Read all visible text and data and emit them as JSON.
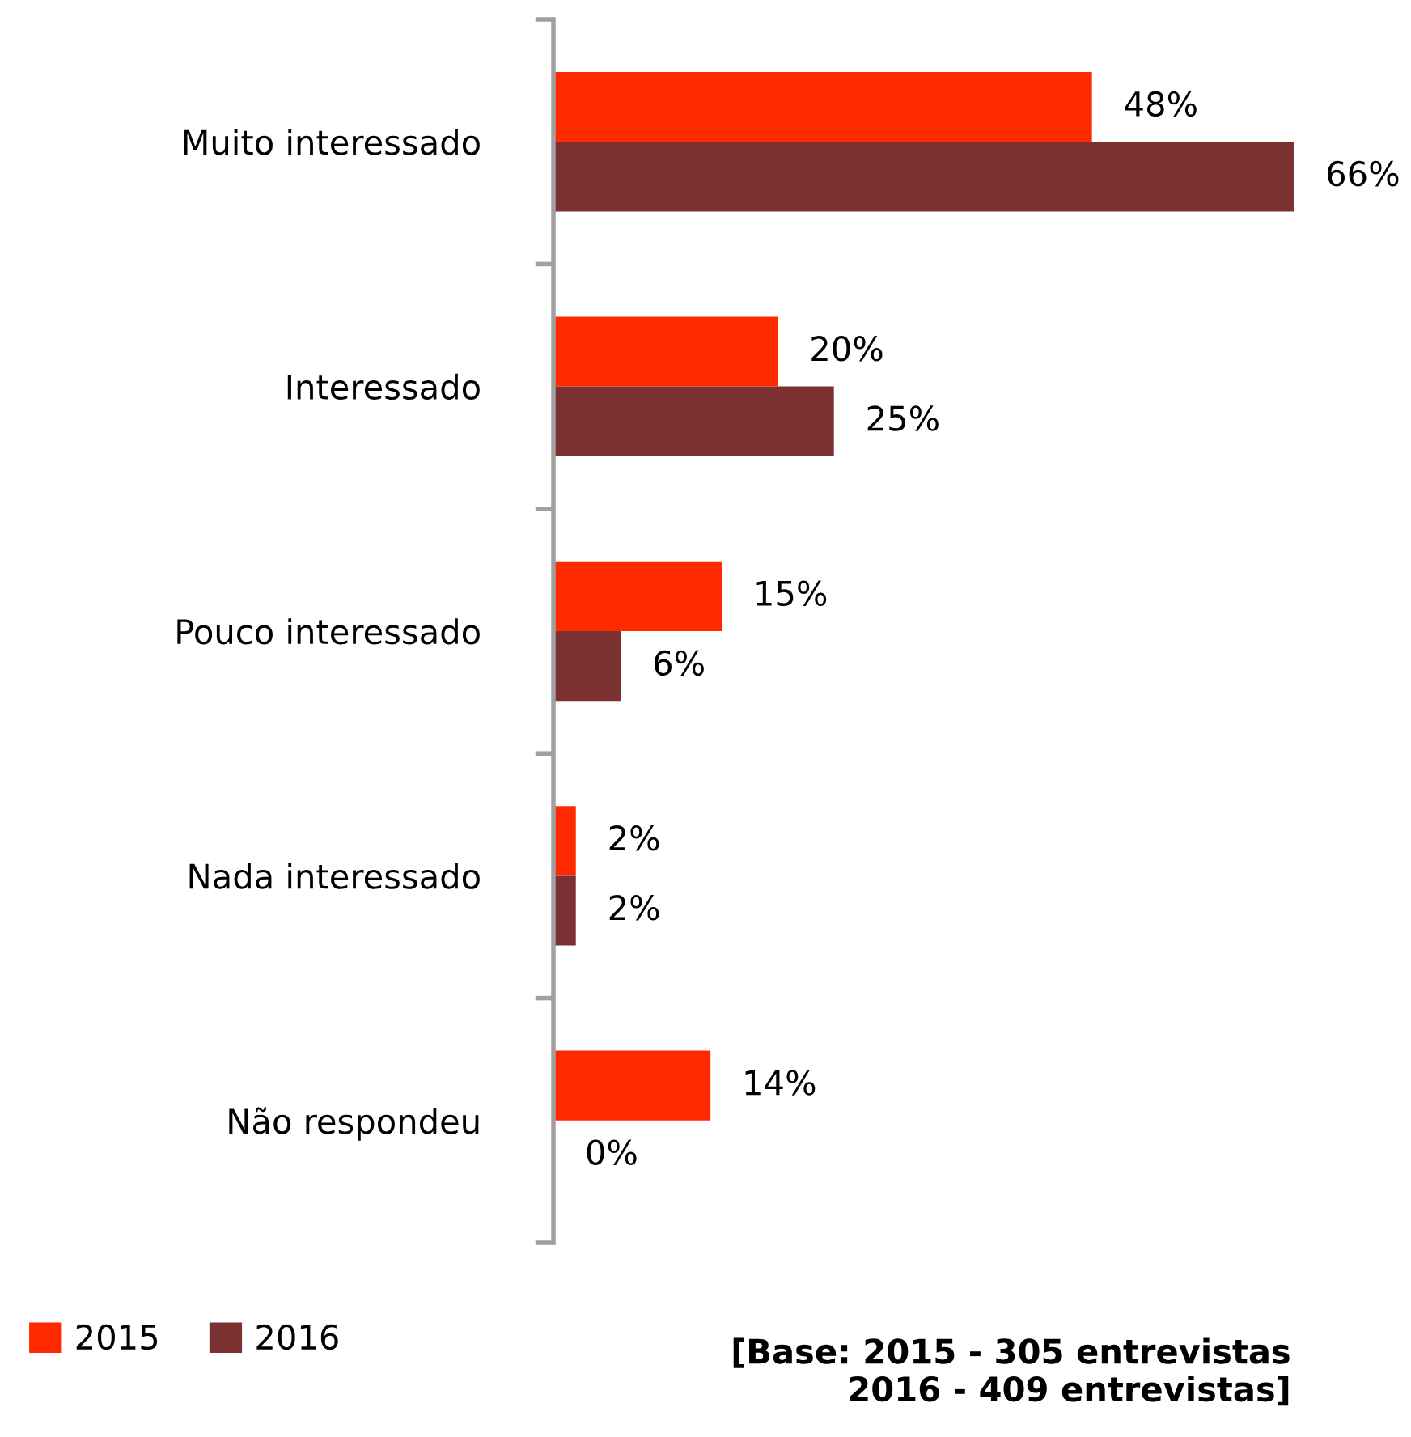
{
  "chart_data": {
    "type": "bar",
    "orientation": "horizontal",
    "categories": [
      "Muito interessado",
      "Interessado",
      "Pouco interessado",
      "Nada interessado",
      "Não respondeu"
    ],
    "series": [
      {
        "name": "2015",
        "color": "#ff2a00",
        "values": [
          48,
          20,
          15,
          2,
          14
        ],
        "value_labels": [
          "48%",
          "20%",
          "15%",
          "2%",
          "14%"
        ]
      },
      {
        "name": "2016",
        "color": "#7b3131",
        "values": [
          66,
          25,
          6,
          2,
          0
        ],
        "value_labels": [
          "66%",
          "25%",
          "6%",
          "2%",
          "0%"
        ]
      }
    ],
    "legend": "bottom left",
    "grid": false,
    "tick_labels": "y",
    "annotations": [
      "[Base: 2015 - 305 entrevistas\n2016 - 409 entrevistas]"
    ]
  }
}
